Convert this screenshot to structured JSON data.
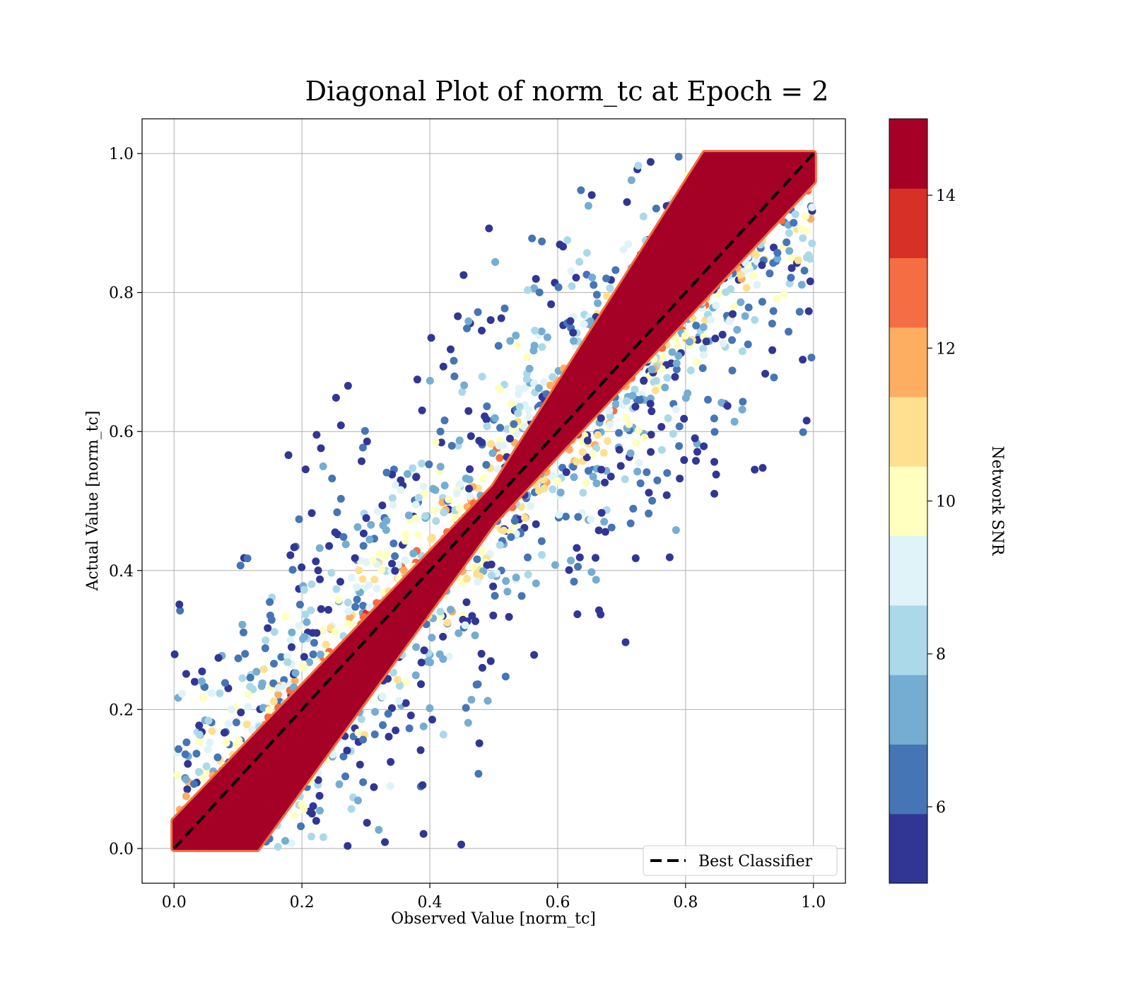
{
  "chart_data": {
    "type": "scatter",
    "title": "Diagonal Plot of norm_tc at Epoch = 2",
    "xlabel": "Observed Value [norm_tc]",
    "ylabel": "Actual Value [norm_tc]",
    "xlim": [
      -0.05,
      1.05
    ],
    "ylim": [
      -0.05,
      1.05
    ],
    "xticks": [
      0.0,
      0.2,
      0.4,
      0.6,
      0.8,
      1.0
    ],
    "yticks": [
      0.0,
      0.2,
      0.4,
      0.6,
      0.8,
      1.0
    ],
    "xtick_labels": [
      "0.0",
      "0.2",
      "0.4",
      "0.6",
      "0.8",
      "1.0"
    ],
    "ytick_labels": [
      "0.0",
      "0.2",
      "0.4",
      "0.6",
      "0.8",
      "1.0"
    ],
    "grid": true,
    "colorbar": {
      "label": "Network SNR",
      "range": [
        5,
        15
      ],
      "ticks": [
        6,
        8,
        10,
        12,
        14
      ],
      "tick_labels": [
        "6",
        "8",
        "10",
        "12",
        "14"
      ],
      "colors": [
        "#313695",
        "#4575b4",
        "#74add1",
        "#abd9e9",
        "#e0f3f8",
        "#ffffbf",
        "#fee090",
        "#fdae61",
        "#f46d43",
        "#d73027",
        "#a50026"
      ]
    },
    "reference_line": {
      "name": "Best Classifier",
      "x": [
        0.0,
        1.0
      ],
      "y": [
        0.0,
        1.0
      ],
      "color": "#000000",
      "style": "dashed"
    },
    "legend": {
      "placement": "lower-right",
      "entries": [
        "Best Classifier"
      ]
    },
    "high_snr_band": {
      "color": "#a50026",
      "lower": [
        [
          0.0,
          0.0
        ],
        [
          0.13,
          0.0
        ],
        [
          0.5,
          0.47
        ],
        [
          1.0,
          0.96
        ],
        [
          1.0,
          1.0
        ]
      ],
      "upper": [
        [
          0.0,
          0.0
        ],
        [
          0.0,
          0.04
        ],
        [
          0.5,
          0.52
        ],
        [
          0.83,
          1.0
        ],
        [
          1.0,
          1.0
        ]
      ]
    },
    "scatter_summary": {
      "point_color_encodes": "Network SNR",
      "pattern": "SNR 5-10 points spread widely on both sides of the diagonal; SNR 14-15 points form a dense band along the diagonal"
    }
  }
}
